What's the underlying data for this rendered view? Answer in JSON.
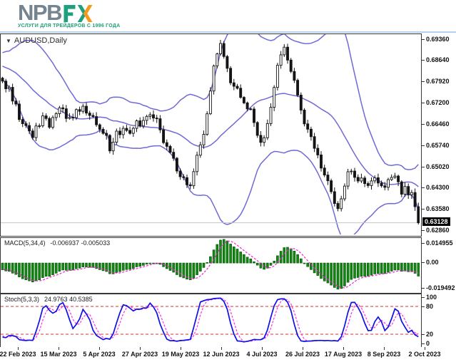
{
  "colors": {
    "band": "#6f6ad8",
    "bull": "#ffffff",
    "bear": "#141414",
    "outline": "#141414",
    "macd_bar": "#0f8c0f",
    "macd_bar_edge": "#054d05",
    "signal": "#f321d7",
    "stoch_k": "#0f0fe8",
    "stoch_d": "#ff3ce8",
    "level": "#e03232",
    "bid_line": "#c4c4c4",
    "price_tag_bg": "#000000",
    "price_tag_fg": "#ffffff",
    "logo_green": "#1ca07e",
    "logo_orange": "#f29a1d",
    "logo_gray": "#75848e"
  },
  "header": {
    "npb": "NPB",
    "fx": "FX",
    "tagline": "УСЛУГИ ДЛЯ ТРЕЙДЕРОВ С 1996 ГОДА"
  },
  "main": {
    "title": "AUDUSD,Daily",
    "dropdown_icon": "▼",
    "y_labels": [
      "0.69360",
      "0.68640",
      "0.67920",
      "0.67200",
      "0.66460",
      "0.65740",
      "0.65020",
      "0.64300",
      "0.63580",
      "0.62860"
    ],
    "current_price": "0.63128"
  },
  "macd": {
    "name": "MACD(5,34,4)",
    "values": "-0.006937 -0.005033",
    "y_labels": [
      "0.014955",
      "0.00",
      "-0.019492"
    ]
  },
  "stoch": {
    "name": "Stoch(5,3,3)",
    "values": "24.9763 40.5385",
    "y_labels": [
      "100",
      "80",
      "20",
      "0"
    ]
  },
  "dates": {
    "labels": [
      "22 Feb 2023",
      "15 Mar 2023",
      "5 Apr 2023",
      "27 Apr 2023",
      "19 May 2023",
      "12 Jun 2023",
      "4 Jul 2023",
      "26 Jul 2023",
      "17 Aug 2023",
      "8 Sep 2023",
      "2 Oct 2023"
    ],
    "centers": [
      25,
      82,
      139,
      196,
      253,
      310,
      367,
      424,
      481,
      538,
      595
    ]
  },
  "chart_data": [
    {
      "type": "candlestick",
      "title": "AUDUSD,Daily",
      "symbol": "AUDUSD",
      "timeframe": "Daily",
      "overlay": "Bollinger Bands (20,2)",
      "bars_visible": 125,
      "current_price": 0.63128,
      "y_range": [
        0.62706,
        0.6952
      ],
      "y_axis_labels": [
        "0.69360",
        "0.68640",
        "0.67920",
        "0.67200",
        "0.66460",
        "0.65740",
        "0.65020",
        "0.64300",
        "0.63580",
        "0.62860"
      ],
      "x_axis_labels": [
        "22 Feb 2023",
        "15 Mar 2023",
        "5 Apr 2023",
        "27 Apr 2023",
        "19 May 2023",
        "12 Jun 2023",
        "4 Jul 2023",
        "26 Jul 2023",
        "17 Aug 2023",
        "8 Sep 2023",
        "2 Oct 2023"
      ],
      "close_path_anchors": [
        [
          -40,
          0.695
        ],
        [
          -30,
          0.691
        ],
        [
          -20,
          0.688
        ],
        [
          -12,
          0.686
        ],
        [
          -6,
          0.684
        ],
        [
          -2,
          0.6815
        ],
        [
          0,
          0.68
        ],
        [
          2,
          0.6762
        ],
        [
          4,
          0.6705
        ],
        [
          5,
          0.6665
        ],
        [
          7,
          0.6633
        ],
        [
          9,
          0.66
        ],
        [
          10,
          0.6638
        ],
        [
          12,
          0.6665
        ],
        [
          14,
          0.6641
        ],
        [
          16,
          0.6698
        ],
        [
          17,
          0.671
        ],
        [
          19,
          0.668
        ],
        [
          21,
          0.666
        ],
        [
          22,
          0.669
        ],
        [
          24,
          0.6701
        ],
        [
          26,
          0.6668
        ],
        [
          27,
          0.666
        ],
        [
          29,
          0.664
        ],
        [
          31,
          0.6597
        ],
        [
          32,
          0.6572
        ],
        [
          34,
          0.661
        ],
        [
          36,
          0.6631
        ],
        [
          38,
          0.6625
        ],
        [
          39,
          0.6641
        ],
        [
          41,
          0.6656
        ],
        [
          43,
          0.668
        ],
        [
          44,
          0.6691
        ],
        [
          46,
          0.6661
        ],
        [
          47,
          0.6621
        ],
        [
          49,
          0.6571
        ],
        [
          51,
          0.6526
        ],
        [
          52,
          0.6491
        ],
        [
          54,
          0.6456
        ],
        [
          56,
          0.6436
        ],
        [
          57,
          0.6481
        ],
        [
          58,
          0.6551
        ],
        [
          60,
          0.6612
        ],
        [
          61,
          0.6681
        ],
        [
          62,
          0.6762
        ],
        [
          63,
          0.6851
        ],
        [
          65,
          0.6916
        ],
        [
          66,
          0.6891
        ],
        [
          67,
          0.6841
        ],
        [
          68,
          0.6801
        ],
        [
          70,
          0.6771
        ],
        [
          71,
          0.6746
        ],
        [
          72,
          0.6721
        ],
        [
          74,
          0.6701
        ],
        [
          75,
          0.6661
        ],
        [
          76,
          0.6611
        ],
        [
          77,
          0.6581
        ],
        [
          79,
          0.6641
        ],
        [
          80,
          0.6711
        ],
        [
          81,
          0.6761
        ],
        [
          82,
          0.6851
        ],
        [
          84,
          0.6901
        ],
        [
          85,
          0.6881
        ],
        [
          86,
          0.6831
        ],
        [
          88,
          0.6761
        ],
        [
          89,
          0.6701
        ],
        [
          90,
          0.6661
        ],
        [
          91,
          0.6621
        ],
        [
          93,
          0.6571
        ],
        [
          94,
          0.6541
        ],
        [
          95,
          0.6501
        ],
        [
          96,
          0.6461
        ],
        [
          98,
          0.6421
        ],
        [
          99,
          0.6391
        ],
        [
          100,
          0.6371
        ],
        [
          101,
          0.6401
        ],
        [
          102,
          0.6441
        ],
        [
          103,
          0.6481
        ],
        [
          104,
          0.6501
        ],
        [
          105,
          0.6481
        ],
        [
          107,
          0.6451
        ],
        [
          108,
          0.6461
        ],
        [
          109,
          0.6441
        ],
        [
          110,
          0.6451
        ],
        [
          112,
          0.6461
        ],
        [
          113,
          0.6441
        ],
        [
          114,
          0.6431
        ],
        [
          115,
          0.6451
        ],
        [
          117,
          0.6461
        ],
        [
          118,
          0.6441
        ],
        [
          119,
          0.6421
        ],
        [
          120,
          0.6431
        ],
        [
          122,
          0.6411
        ],
        [
          123,
          0.6361
        ],
        [
          124,
          0.63128
        ]
      ]
    },
    {
      "type": "bar",
      "name": "MACD(5,34,4)",
      "last_values": [
        -0.006937,
        -0.005033
      ],
      "y_axis_labels": [
        "0.014955",
        "0.00",
        "-0.019492"
      ],
      "y_range": [
        -0.0222,
        0.0185
      ],
      "derived_from": "close_path_anchors",
      "legend_position": "top-left",
      "grid": false
    },
    {
      "type": "line",
      "name": "Stoch(5,3,3)",
      "last_values": [
        24.9763,
        40.5385
      ],
      "levels": [
        80,
        20
      ],
      "y_axis_labels": [
        "100",
        "80",
        "20",
        "0"
      ],
      "y_range": [
        0,
        100
      ],
      "derived_from": "close_path_anchors",
      "legend_position": "top-left",
      "grid": false
    }
  ]
}
